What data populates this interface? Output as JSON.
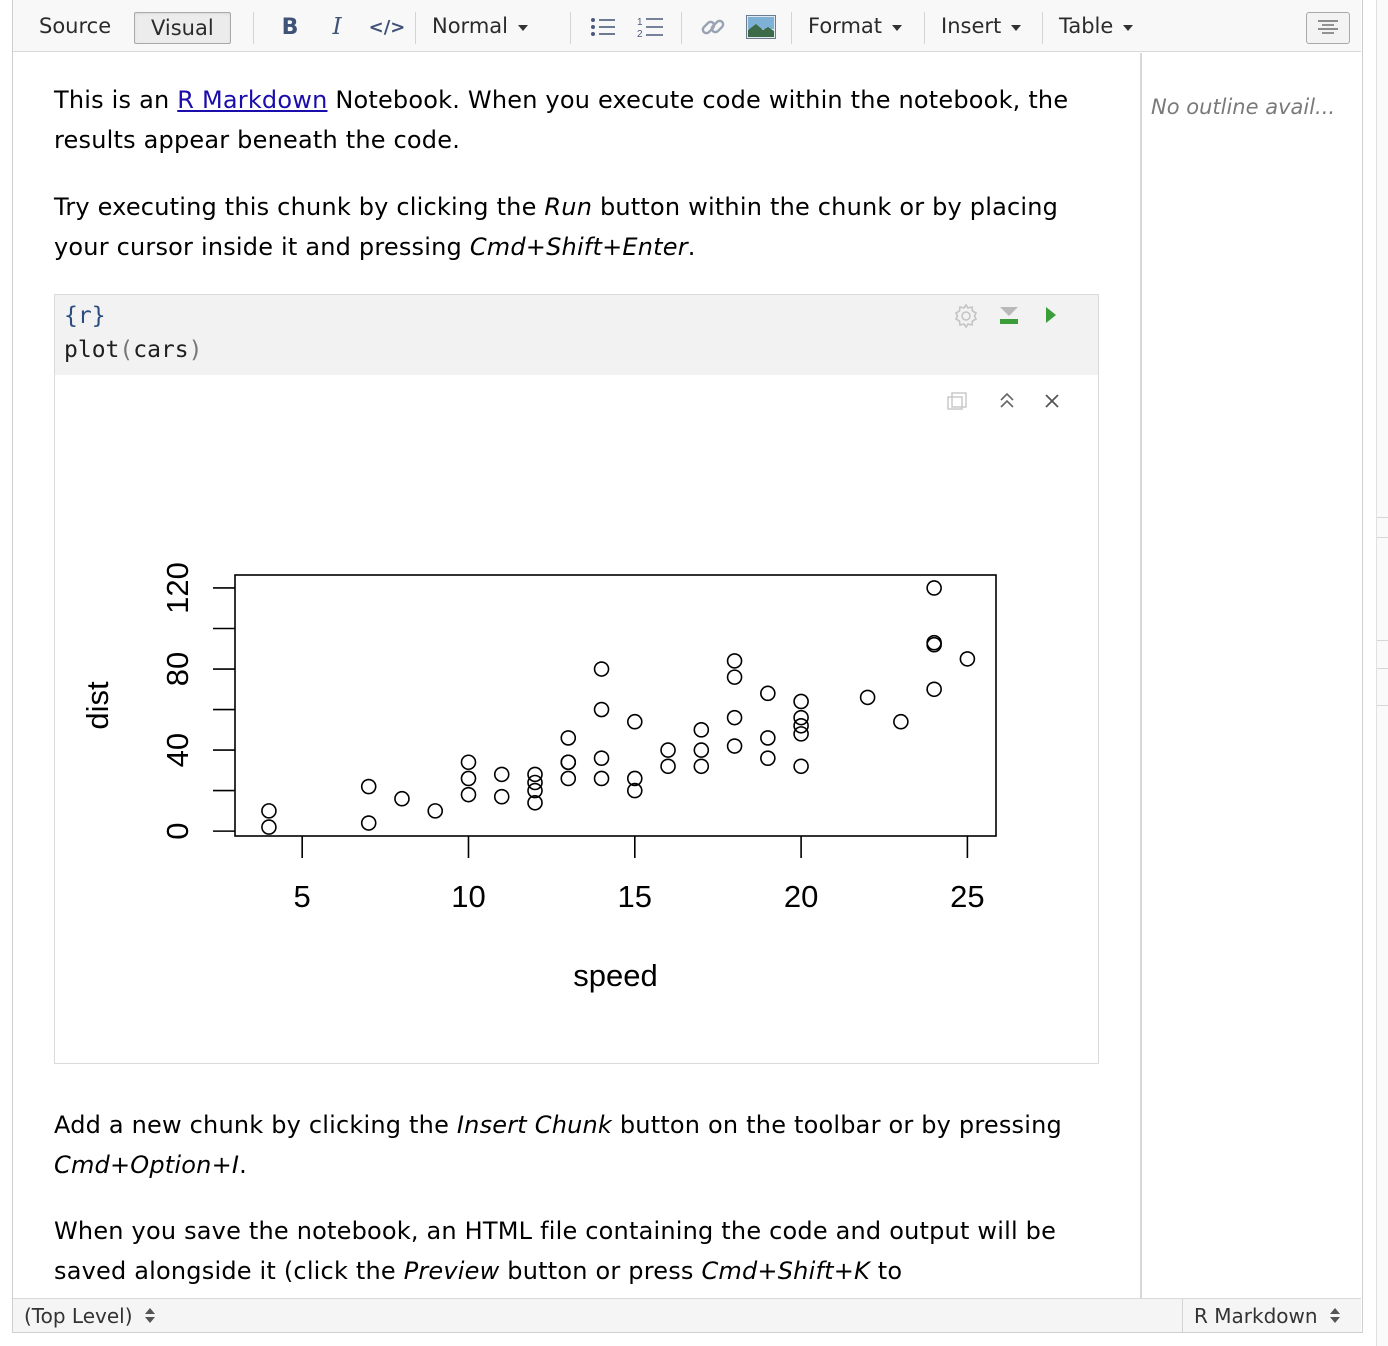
{
  "toolbar": {
    "source_label": "Source",
    "visual_label": "Visual",
    "bold_label": "B",
    "italic_label": "I",
    "code_label": "</>",
    "style_label": "Normal",
    "format_label": "Format",
    "insert_label": "Insert",
    "table_label": "Table"
  },
  "document": {
    "p1_before_link": "This is an ",
    "p1_link": "R Markdown",
    "p1_after_link": " Notebook. When you execute code within the notebook, the results appear beneath the code.",
    "p2_a": "Try executing this chunk by clicking the ",
    "p2_em1": "Run",
    "p2_b": " button within the chunk or by placing your cursor inside it and pressing ",
    "p2_em2": "Cmd+Shift+Enter",
    "p2_c": ".",
    "p3_a": "Add a new chunk by clicking the ",
    "p3_em1": "Insert Chunk",
    "p3_b": " button on the toolbar or by pressing ",
    "p3_em2": "Cmd+Option+I",
    "p3_c": ".",
    "p4_a": "When you save the notebook, an HTML file containing the code and output will be saved alongside it (click the ",
    "p4_em1": "Preview",
    "p4_b": " button or press ",
    "p4_em2": "Cmd+Shift+K",
    "p4_c": " to"
  },
  "chunk": {
    "header_open": "{",
    "header_lang": "r",
    "header_close": "}",
    "code_fn": "plot",
    "code_open": "(",
    "code_arg": "cars",
    "code_close": ")"
  },
  "outline": {
    "empty_text": "No outline avail..."
  },
  "statusbar": {
    "scope": "(Top Level)",
    "mode": "R Markdown"
  },
  "colors": {
    "run_green": "#3a9d3a",
    "link_blue": "#1a0dab",
    "code_bg": "#f2f2f2"
  },
  "chart_data": {
    "type": "scatter",
    "title": "",
    "xlabel": "speed",
    "ylabel": "dist",
    "xlim": [
      4,
      25
    ],
    "ylim": [
      2,
      120
    ],
    "xticks": [
      5,
      10,
      15,
      20,
      25
    ],
    "yticks": [
      0,
      20,
      40,
      60,
      80,
      100,
      120
    ],
    "ytick_labels": [
      "0",
      "",
      "40",
      "",
      "80",
      "",
      "120"
    ],
    "grid": false,
    "legend": "none",
    "marker": "open-circle",
    "points": [
      [
        4,
        2
      ],
      [
        4,
        10
      ],
      [
        7,
        4
      ],
      [
        7,
        22
      ],
      [
        8,
        16
      ],
      [
        9,
        10
      ],
      [
        10,
        18
      ],
      [
        10,
        26
      ],
      [
        10,
        34
      ],
      [
        11,
        17
      ],
      [
        11,
        28
      ],
      [
        12,
        14
      ],
      [
        12,
        20
      ],
      [
        12,
        24
      ],
      [
        12,
        28
      ],
      [
        13,
        26
      ],
      [
        13,
        34
      ],
      [
        13,
        34
      ],
      [
        13,
        46
      ],
      [
        14,
        26
      ],
      [
        14,
        36
      ],
      [
        14,
        60
      ],
      [
        14,
        80
      ],
      [
        15,
        20
      ],
      [
        15,
        26
      ],
      [
        15,
        54
      ],
      [
        16,
        32
      ],
      [
        16,
        40
      ],
      [
        17,
        32
      ],
      [
        17,
        40
      ],
      [
        17,
        50
      ],
      [
        18,
        42
      ],
      [
        18,
        56
      ],
      [
        18,
        76
      ],
      [
        18,
        84
      ],
      [
        19,
        36
      ],
      [
        19,
        46
      ],
      [
        19,
        68
      ],
      [
        20,
        32
      ],
      [
        20,
        48
      ],
      [
        20,
        52
      ],
      [
        20,
        56
      ],
      [
        20,
        64
      ],
      [
        22,
        66
      ],
      [
        23,
        54
      ],
      [
        24,
        70
      ],
      [
        24,
        92
      ],
      [
        24,
        93
      ],
      [
        24,
        120
      ],
      [
        25,
        85
      ]
    ]
  }
}
